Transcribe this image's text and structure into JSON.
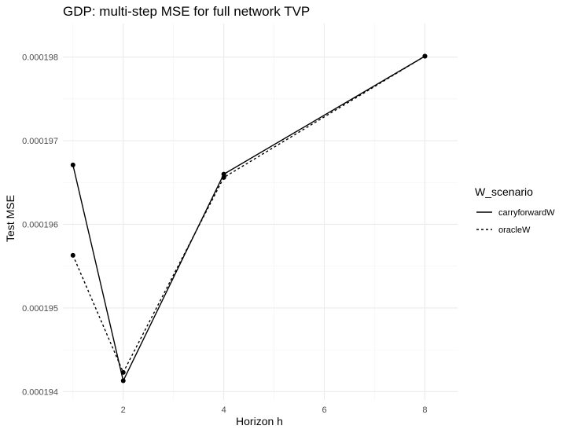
{
  "chart_data": {
    "type": "line",
    "title": "GDP: multi-step MSE for full network TVP",
    "xlabel": "Horizon h",
    "ylabel": "Test MSE",
    "x_ticks": [
      2,
      4,
      6,
      8
    ],
    "y_ticks": [
      0.000194,
      0.000195,
      0.000196,
      0.000197,
      0.000198
    ],
    "y_tick_labels": [
      "0.000194",
      "0.000195",
      "0.000196",
      "0.000197",
      "0.000198"
    ],
    "xlim": [
      0.8,
      8.65
    ],
    "ylim": [
      0.0001939,
      0.0001984
    ],
    "grid": true,
    "legend": {
      "title": "W_scenario",
      "position": "right"
    },
    "series": [
      {
        "name": "carryforwardW",
        "linetype": "solid",
        "x": [
          1,
          2,
          4,
          8
        ],
        "y": [
          0.00019671,
          0.00019413,
          0.0001966,
          0.00019801
        ]
      },
      {
        "name": "oracleW",
        "linetype": "dashed",
        "x": [
          1,
          2,
          4,
          8
        ],
        "y": [
          0.00019563,
          0.00019423,
          0.00019656,
          0.00019801
        ]
      }
    ],
    "colors": {
      "line": "#000000",
      "grid_major": "#ebebeb",
      "grid_minor": "#f2f2f2"
    }
  }
}
